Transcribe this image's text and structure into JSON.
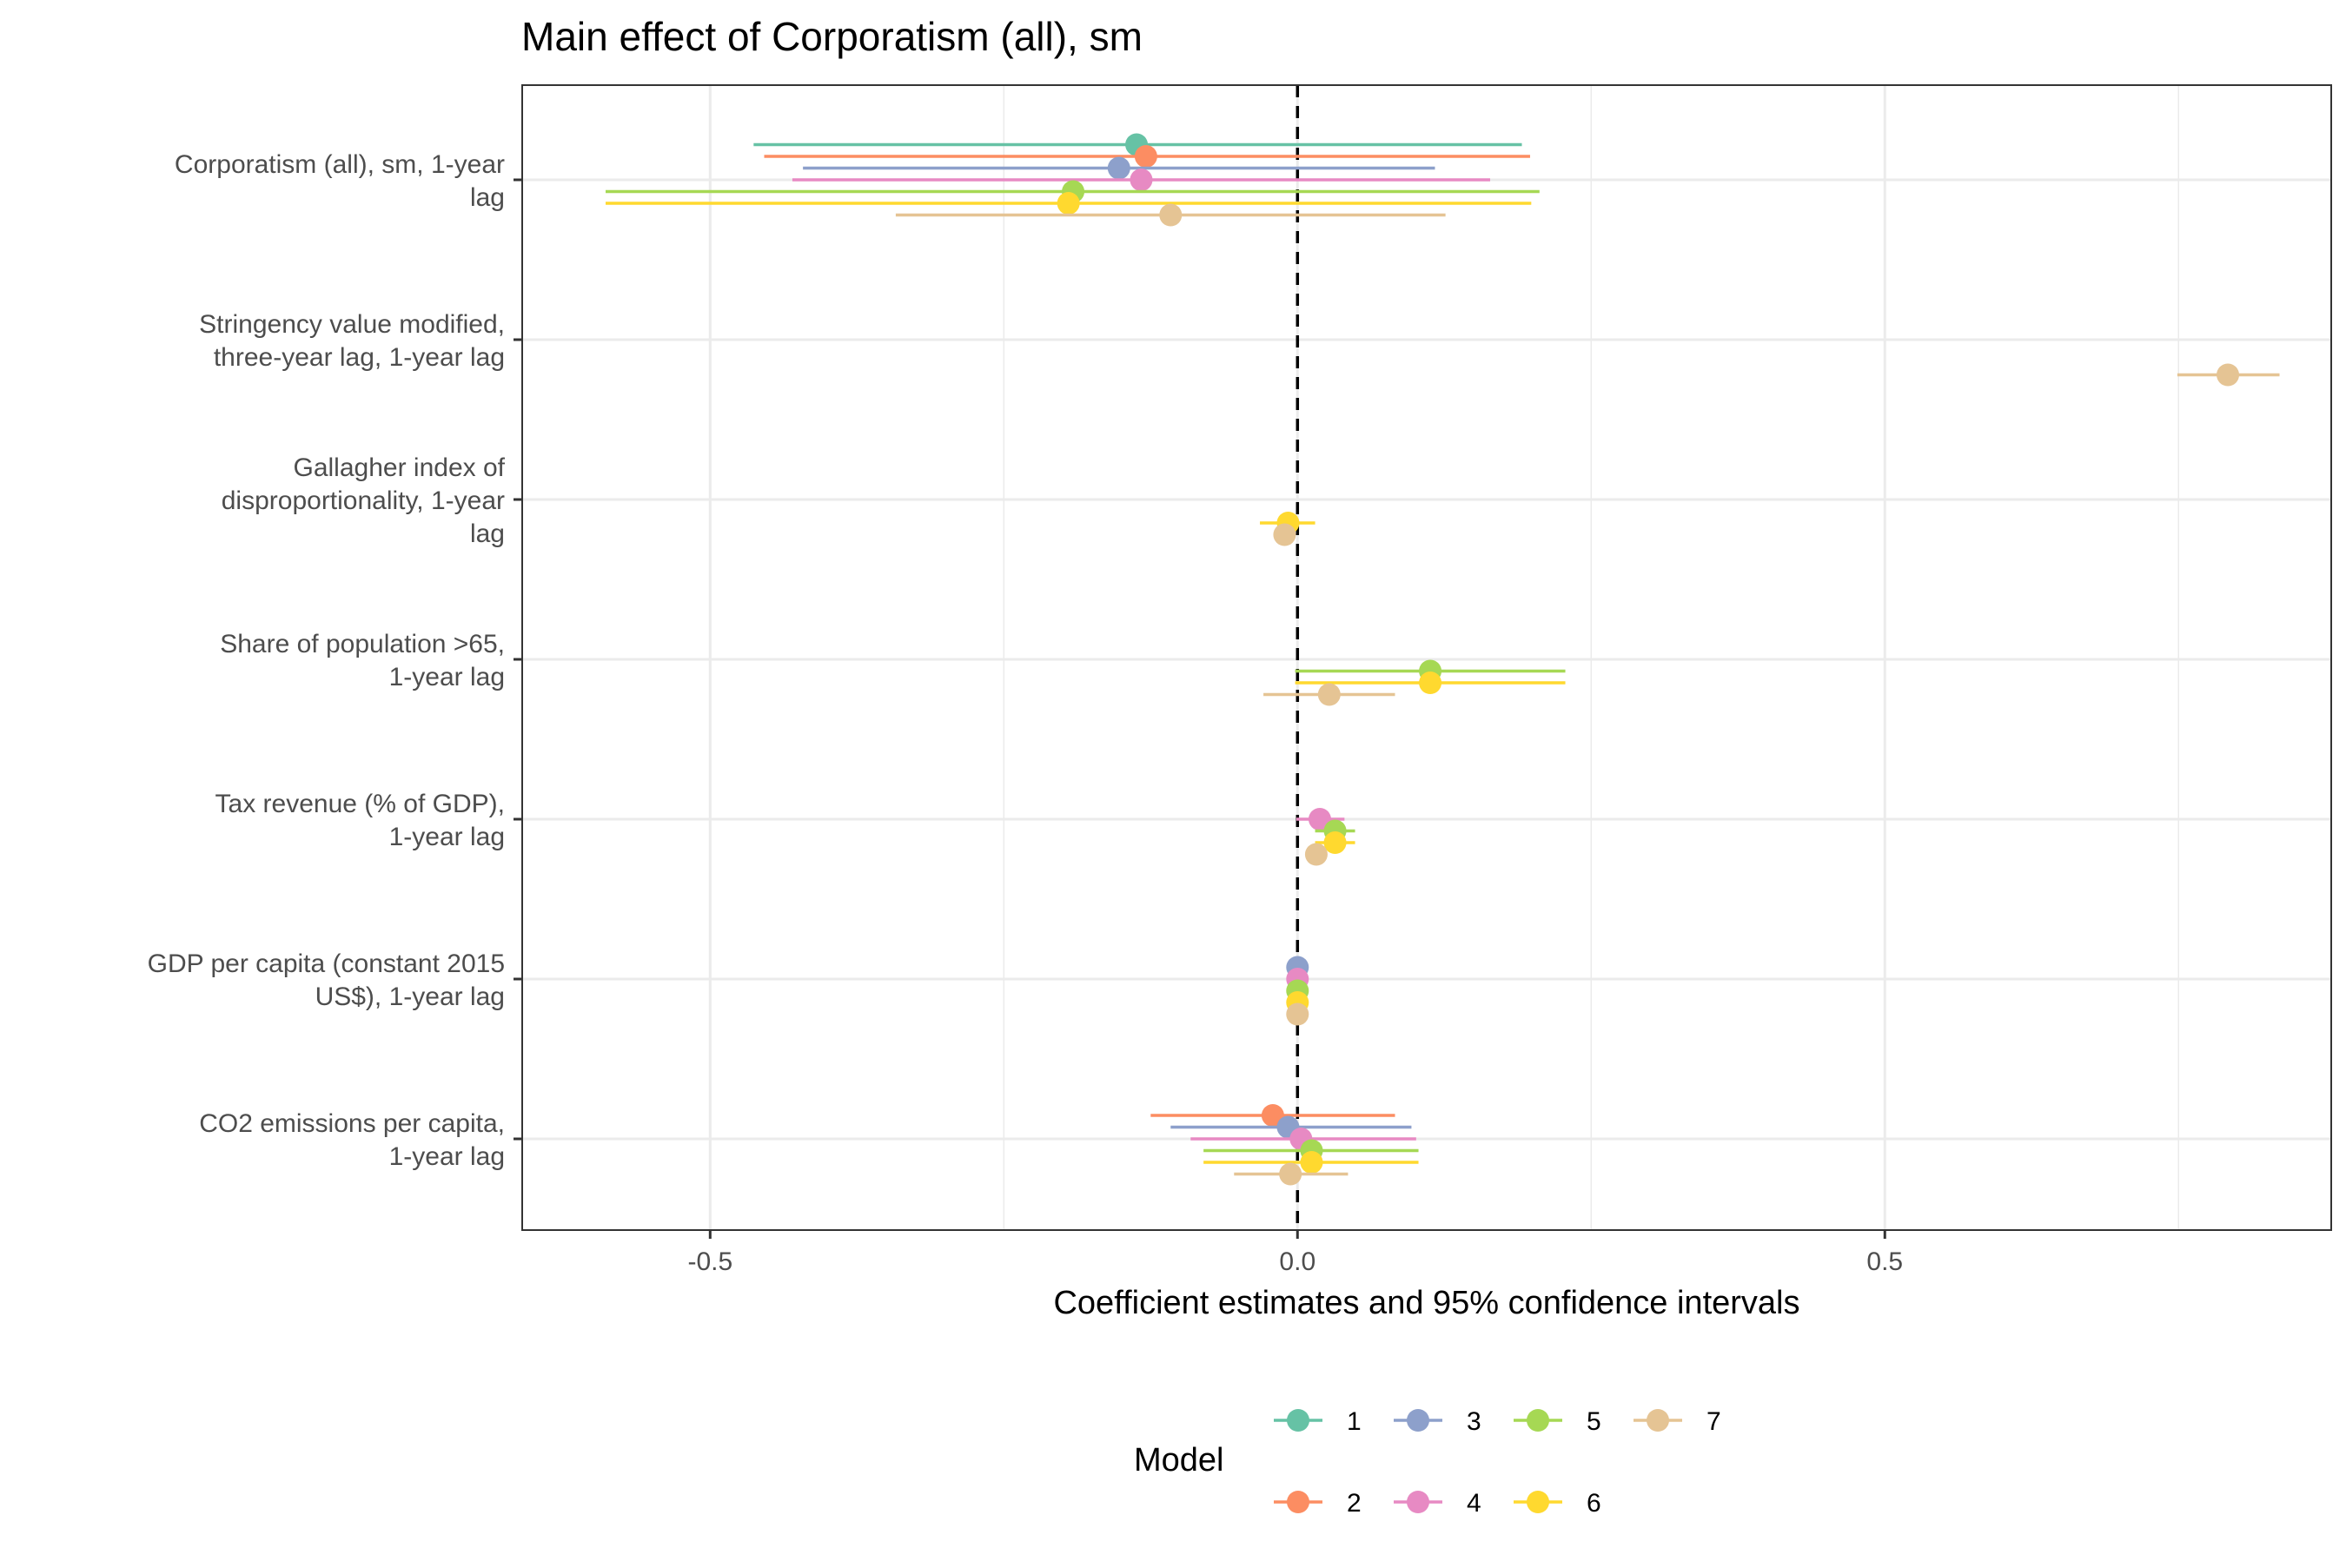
{
  "chart_data": {
    "type": "forest",
    "title": "Main effect of Corporatism (all), sm",
    "xlabel": "Coefficient estimates and 95% confidence intervals",
    "ylabel": "",
    "xlim": [
      -0.66,
      0.88
    ],
    "x_ticks": [
      -0.5,
      0.0,
      0.5
    ],
    "x_tick_labels": [
      "-0.5",
      "0.0",
      "0.5"
    ],
    "x_minor_ticks": [
      -0.25,
      0.25,
      0.75
    ],
    "reference_line": 0,
    "grid": true,
    "legend_position": "bottom",
    "legend_title": "Model",
    "categories": [
      [
        "Corporatism (all), sm, 1-year",
        "lag"
      ],
      [
        "Stringency value modified,",
        "three-year lag, 1-year lag"
      ],
      [
        "Gallagher index of",
        "disproportionality, 1-year",
        "lag"
      ],
      [
        "Share of population >65,",
        "1-year lag"
      ],
      [
        "Tax revenue (% of GDP),",
        "1-year lag"
      ],
      [
        "GDP per capita (constant 2015",
        "US$), 1-year lag"
      ],
      [
        "CO2 emissions per capita,",
        "1-year lag"
      ]
    ],
    "series": [
      {
        "name": "1",
        "color": "#66C2A5",
        "points": [
          {
            "cat": 0,
            "est": -0.137,
            "lo": -0.463,
            "hi": 0.191
          }
        ]
      },
      {
        "name": "2",
        "color": "#FC8D62",
        "points": [
          {
            "cat": 0,
            "est": -0.129,
            "lo": -0.454,
            "hi": 0.198
          },
          {
            "cat": 6,
            "est": -0.021,
            "lo": -0.125,
            "hi": 0.083
          }
        ]
      },
      {
        "name": "3",
        "color": "#8DA0CB",
        "points": [
          {
            "cat": 0,
            "est": -0.152,
            "lo": -0.421,
            "hi": 0.117
          },
          {
            "cat": 5,
            "est": 0.0,
            "lo": -0.003,
            "hi": 0.003
          },
          {
            "cat": 6,
            "est": -0.008,
            "lo": -0.108,
            "hi": 0.097
          }
        ]
      },
      {
        "name": "4",
        "color": "#E78AC3",
        "points": [
          {
            "cat": 0,
            "est": -0.133,
            "lo": -0.43,
            "hi": 0.164
          },
          {
            "cat": 4,
            "est": 0.019,
            "lo": -0.001,
            "hi": 0.04
          },
          {
            "cat": 5,
            "est": 0.0,
            "lo": -0.003,
            "hi": 0.003
          },
          {
            "cat": 6,
            "est": 0.003,
            "lo": -0.091,
            "hi": 0.101
          }
        ]
      },
      {
        "name": "5",
        "color": "#A6D854",
        "points": [
          {
            "cat": 0,
            "est": -0.191,
            "lo": -0.589,
            "hi": 0.206
          },
          {
            "cat": 3,
            "est": 0.113,
            "lo": -0.002,
            "hi": 0.228
          },
          {
            "cat": 4,
            "est": 0.032,
            "lo": 0.015,
            "hi": 0.049
          },
          {
            "cat": 5,
            "est": 0.0,
            "lo": -0.003,
            "hi": 0.003
          },
          {
            "cat": 6,
            "est": 0.012,
            "lo": -0.08,
            "hi": 0.103
          }
        ]
      },
      {
        "name": "6",
        "color": "#FFD92F",
        "points": [
          {
            "cat": 0,
            "est": -0.195,
            "lo": -0.589,
            "hi": 0.199
          },
          {
            "cat": 2,
            "est": -0.008,
            "lo": -0.032,
            "hi": 0.015
          },
          {
            "cat": 3,
            "est": 0.113,
            "lo": -0.002,
            "hi": 0.228
          },
          {
            "cat": 4,
            "est": 0.032,
            "lo": 0.015,
            "hi": 0.049
          },
          {
            "cat": 5,
            "est": 0.0,
            "lo": -0.003,
            "hi": 0.003
          },
          {
            "cat": 6,
            "est": 0.012,
            "lo": -0.08,
            "hi": 0.103
          }
        ]
      },
      {
        "name": "7",
        "color": "#E5C494",
        "points": [
          {
            "cat": 0,
            "est": -0.108,
            "lo": -0.342,
            "hi": 0.126
          },
          {
            "cat": 1,
            "est": 0.792,
            "lo": 0.749,
            "hi": 0.836
          },
          {
            "cat": 2,
            "est": -0.011,
            "lo": -0.013,
            "hi": -0.009
          },
          {
            "cat": 3,
            "est": 0.027,
            "lo": -0.029,
            "hi": 0.083
          },
          {
            "cat": 4,
            "est": 0.016,
            "lo": 0.014,
            "hi": 0.018
          },
          {
            "cat": 5,
            "est": 0.0,
            "lo": -0.002,
            "hi": 0.002
          },
          {
            "cat": 6,
            "est": -0.006,
            "lo": -0.054,
            "hi": 0.043
          }
        ]
      }
    ]
  }
}
